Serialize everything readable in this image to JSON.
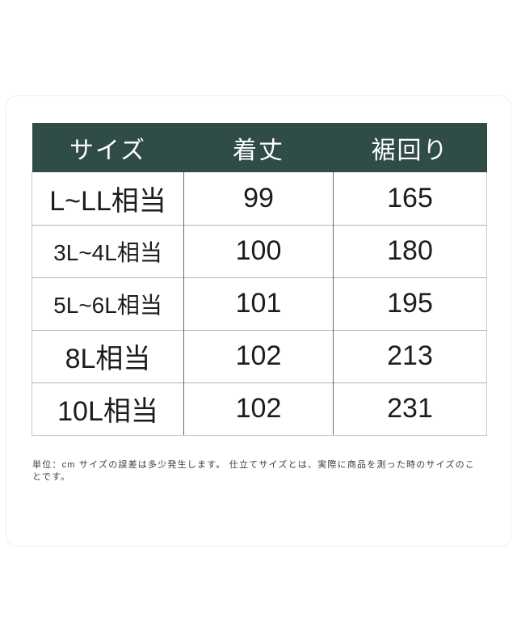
{
  "size_chart": {
    "columns": [
      {
        "label": "サイズ"
      },
      {
        "label": "着丈"
      },
      {
        "label": "裾回り"
      }
    ],
    "rows": [
      {
        "size": "L~LL相当",
        "length": "99",
        "hem": "165"
      },
      {
        "size": "3L~4L相当",
        "length": "100",
        "hem": "180"
      },
      {
        "size": "5L~6L相当",
        "length": "101",
        "hem": "195"
      },
      {
        "size": "8L相当",
        "length": "102",
        "hem": "213"
      },
      {
        "size": "10L相当",
        "length": "102",
        "hem": "231"
      }
    ],
    "footnote": "単位：cm サイズの誤差は多少発生します。 仕立てサイズとは、実際に商品を測った時のサイズのことです。"
  },
  "colors": {
    "header_bg": "#2f4c47",
    "header_text": "#ffffff",
    "grid_vertical": "#5c706d",
    "grid_horizontal": "#a8b6b3",
    "outer_border": "#c3ccca",
    "card_border": "#efefef",
    "body_text": "#1c1c1c",
    "footnote_text": "#3d3d3d"
  },
  "chart_data": {
    "type": "table",
    "columns": [
      "サイズ",
      "着丈",
      "裾回り"
    ],
    "rows": [
      [
        "L~LL相当",
        99,
        165
      ],
      [
        "3L~4L相当",
        100,
        180
      ],
      [
        "5L~6L相当",
        101,
        195
      ],
      [
        "8L相当",
        102,
        213
      ],
      [
        "10L相当",
        102,
        231
      ]
    ],
    "unit": "cm",
    "footnote": "単位：cm サイズの誤差は多少発生します。 仕立てサイズとは、実際に商品を測った時のサイズのことです。"
  }
}
